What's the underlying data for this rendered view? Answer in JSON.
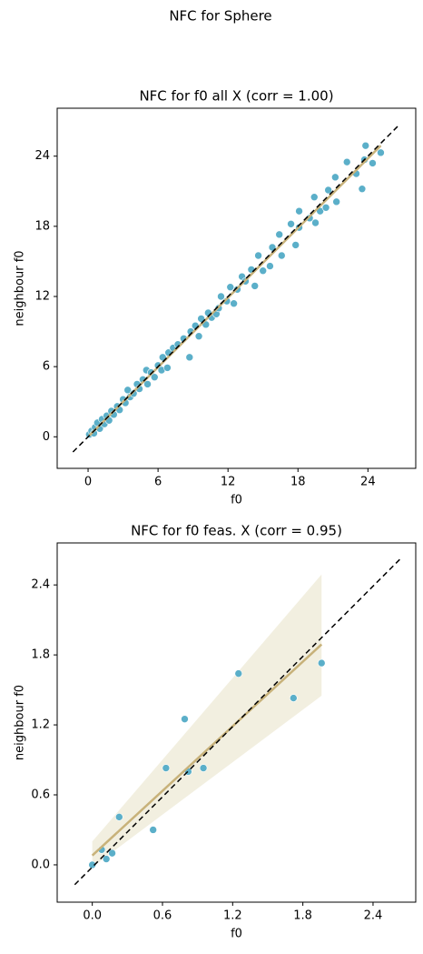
{
  "title": "NFC for Sphere",
  "chart_data": [
    {
      "type": "scatter",
      "title": "NFC for f0 all X (corr = 1.00)",
      "xlabel": "f0",
      "ylabel": "neighbour f0",
      "color": "#5bafc9",
      "x": [
        0.1,
        0.3,
        0.5,
        0.6,
        0.8,
        1.0,
        1.2,
        1.4,
        1.6,
        1.8,
        2.0,
        2.2,
        2.5,
        2.7,
        3.0,
        3.2,
        3.4,
        3.6,
        3.9,
        4.2,
        4.4,
        4.7,
        5.0,
        5.1,
        5.4,
        5.7,
        6.0,
        6.3,
        6.4,
        6.9,
        6.8,
        7.3,
        7.7,
        8.2,
        8.7,
        8.8,
        9.2,
        9.5,
        9.7,
        10.1,
        10.3,
        10.6,
        11.0,
        11.2,
        11.4,
        11.9,
        12.2,
        12.5,
        12.8,
        13.2,
        13.5,
        14.0,
        14.3,
        14.6,
        15.0,
        15.6,
        15.8,
        16.4,
        16.6,
        17.4,
        17.8,
        18.1,
        18.1,
        19.0,
        19.4,
        19.5,
        19.9,
        20.4,
        20.6,
        21.2,
        21.3,
        22.2,
        23.0,
        23.5,
        23.7,
        23.8,
        24.4,
        25.1
      ],
      "values": [
        0.2,
        0.5,
        0.3,
        0.8,
        1.2,
        0.7,
        1.5,
        1.1,
        1.8,
        1.4,
        2.2,
        1.9,
        2.6,
        2.3,
        3.2,
        2.9,
        4.0,
        3.4,
        3.7,
        4.5,
        4.1,
        4.9,
        5.7,
        4.5,
        5.5,
        5.1,
        6.1,
        5.7,
        6.8,
        7.2,
        5.9,
        7.6,
        7.9,
        8.4,
        6.8,
        9.0,
        9.5,
        8.6,
        10.1,
        9.6,
        10.6,
        10.2,
        10.5,
        11.0,
        12.0,
        11.6,
        12.8,
        11.4,
        12.6,
        13.7,
        13.3,
        14.3,
        12.9,
        15.5,
        14.2,
        14.6,
        16.2,
        17.3,
        15.5,
        18.2,
        16.4,
        17.9,
        19.3,
        18.7,
        20.5,
        18.3,
        19.3,
        19.6,
        21.1,
        22.2,
        20.1,
        23.5,
        22.5,
        21.2,
        23.7,
        24.9,
        23.4,
        24.3
      ],
      "xlim": [
        -2.65,
        28.1
      ],
      "ylim": [
        -2.7,
        28.1
      ],
      "xticks": [
        0,
        6,
        12,
        18,
        24
      ],
      "yticks": [
        0,
        6,
        12,
        18,
        24
      ],
      "reference_line": {
        "x": [
          -1.3,
          26.6
        ],
        "y": [
          -1.3,
          26.6
        ]
      },
      "fit_line": {
        "color": "#c8b27a",
        "x": [
          0.1,
          25.1
        ],
        "y": [
          0.1,
          24.9
        ]
      }
    },
    {
      "type": "scatter",
      "title": "NFC for f0 feas. X (corr = 0.95)",
      "xlabel": "f0",
      "ylabel": "neighbour f0",
      "color": "#5bafc9",
      "x": [
        0.0,
        0.08,
        0.12,
        0.17,
        0.23,
        0.52,
        0.63,
        0.79,
        0.82,
        0.95,
        1.25,
        1.72,
        1.96
      ],
      "values": [
        0.0,
        0.13,
        0.05,
        0.1,
        0.41,
        0.3,
        0.83,
        1.25,
        0.8,
        0.83,
        1.64,
        1.43,
        1.73
      ],
      "xlim": [
        -0.3,
        2.765
      ],
      "ylim": [
        -0.32,
        2.76
      ],
      "xticks": [
        {
          "value": 0,
          "label": "0.0"
        },
        0.6,
        1.2,
        1.8,
        2.4
      ],
      "yticks": [
        {
          "value": 0,
          "label": "0.0"
        },
        0.6,
        1.2,
        1.8,
        2.4
      ],
      "reference_line": {
        "x": [
          -0.15,
          2.63
        ],
        "y": [
          -0.17,
          2.62
        ]
      },
      "fit_line": {
        "color": "#c8b27a",
        "x": [
          0.0,
          1.96
        ],
        "y": [
          0.08,
          1.89
        ]
      },
      "fit_band": {
        "color": "#f2efe0",
        "x": [
          0.0,
          1.96
        ],
        "lower": [
          -0.02,
          1.45
        ],
        "upper": [
          0.2,
          2.49
        ]
      }
    }
  ]
}
